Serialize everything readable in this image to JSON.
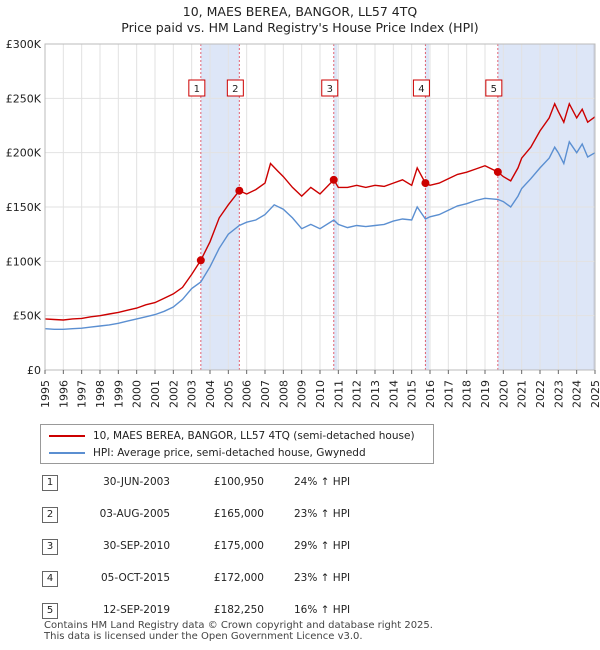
{
  "chart_data": {
    "type": "line",
    "title": "10, MAES BEREA, BANGOR, LL57 4TQ",
    "subtitle": "Price paid vs. HM Land Registry's House Price Index (HPI)",
    "xlim": [
      1995,
      2025
    ],
    "ylim": [
      0,
      300000
    ],
    "x_ticks": [
      1995,
      1996,
      1997,
      1998,
      1999,
      2000,
      2001,
      2002,
      2003,
      2004,
      2005,
      2006,
      2007,
      2008,
      2009,
      2010,
      2011,
      2012,
      2013,
      2014,
      2015,
      2016,
      2017,
      2018,
      2019,
      2020,
      2021,
      2022,
      2023,
      2024,
      2025
    ],
    "y_ticks": [
      {
        "value": 0,
        "label": "£0"
      },
      {
        "value": 50000,
        "label": "£50K"
      },
      {
        "value": 100000,
        "label": "£100K"
      },
      {
        "value": 150000,
        "label": "£150K"
      },
      {
        "value": 200000,
        "label": "£200K"
      },
      {
        "value": 250000,
        "label": "£250K"
      },
      {
        "value": 300000,
        "label": "£300K"
      }
    ],
    "grid": true,
    "legend_position": "below",
    "series": [
      {
        "name": "10, MAES BEREA, BANGOR, LL57 4TQ (semi-detached house)",
        "color": "#cc0000",
        "points": [
          [
            1995.0,
            47000
          ],
          [
            1995.5,
            46500
          ],
          [
            1996.0,
            46000
          ],
          [
            1996.5,
            47000
          ],
          [
            1997.0,
            47500
          ],
          [
            1997.5,
            49000
          ],
          [
            1998.0,
            50000
          ],
          [
            1998.5,
            51500
          ],
          [
            1999.0,
            53000
          ],
          [
            1999.5,
            55000
          ],
          [
            2000.0,
            57000
          ],
          [
            2000.5,
            60000
          ],
          [
            2001.0,
            62000
          ],
          [
            2001.5,
            66000
          ],
          [
            2002.0,
            70000
          ],
          [
            2002.5,
            76000
          ],
          [
            2003.0,
            88000
          ],
          [
            2003.5,
            100950
          ],
          [
            2004.0,
            118000
          ],
          [
            2004.5,
            140000
          ],
          [
            2005.0,
            152000
          ],
          [
            2005.6,
            165000
          ],
          [
            2006.0,
            162000
          ],
          [
            2006.5,
            166000
          ],
          [
            2007.0,
            172000
          ],
          [
            2007.3,
            190000
          ],
          [
            2007.7,
            183000
          ],
          [
            2008.0,
            178000
          ],
          [
            2008.5,
            168000
          ],
          [
            2009.0,
            160000
          ],
          [
            2009.5,
            168000
          ],
          [
            2010.0,
            162000
          ],
          [
            2010.75,
            175000
          ],
          [
            2011.0,
            168000
          ],
          [
            2011.5,
            168000
          ],
          [
            2012.0,
            170000
          ],
          [
            2012.5,
            168000
          ],
          [
            2013.0,
            170000
          ],
          [
            2013.5,
            169000
          ],
          [
            2014.0,
            172000
          ],
          [
            2014.5,
            175000
          ],
          [
            2015.0,
            170000
          ],
          [
            2015.3,
            186000
          ],
          [
            2015.75,
            172000
          ],
          [
            2016.0,
            170000
          ],
          [
            2016.5,
            172000
          ],
          [
            2017.0,
            176000
          ],
          [
            2017.5,
            180000
          ],
          [
            2018.0,
            182000
          ],
          [
            2018.5,
            185000
          ],
          [
            2019.0,
            188000
          ],
          [
            2019.7,
            182250
          ],
          [
            2020.0,
            178000
          ],
          [
            2020.4,
            174000
          ],
          [
            2020.8,
            186000
          ],
          [
            2021.0,
            195000
          ],
          [
            2021.5,
            205000
          ],
          [
            2022.0,
            220000
          ],
          [
            2022.5,
            232000
          ],
          [
            2022.8,
            245000
          ],
          [
            2023.0,
            238000
          ],
          [
            2023.3,
            228000
          ],
          [
            2023.6,
            245000
          ],
          [
            2024.0,
            232000
          ],
          [
            2024.3,
            240000
          ],
          [
            2024.6,
            228000
          ],
          [
            2025.0,
            233000
          ]
        ]
      },
      {
        "name": "HPI: Average price, semi-detached house, Gwynedd",
        "color": "#5b8fd1",
        "points": [
          [
            1995.0,
            38000
          ],
          [
            1995.5,
            37500
          ],
          [
            1996.0,
            37500
          ],
          [
            1996.5,
            38000
          ],
          [
            1997.0,
            38500
          ],
          [
            1997.5,
            39500
          ],
          [
            1998.0,
            40500
          ],
          [
            1998.5,
            41500
          ],
          [
            1999.0,
            43000
          ],
          [
            1999.5,
            45000
          ],
          [
            2000.0,
            47000
          ],
          [
            2000.5,
            49000
          ],
          [
            2001.0,
            51000
          ],
          [
            2001.5,
            54000
          ],
          [
            2002.0,
            58000
          ],
          [
            2002.5,
            65000
          ],
          [
            2003.0,
            75000
          ],
          [
            2003.5,
            81000
          ],
          [
            2004.0,
            95000
          ],
          [
            2004.5,
            112000
          ],
          [
            2005.0,
            125000
          ],
          [
            2005.6,
            133000
          ],
          [
            2006.0,
            136000
          ],
          [
            2006.5,
            138000
          ],
          [
            2007.0,
            143000
          ],
          [
            2007.5,
            152000
          ],
          [
            2008.0,
            148000
          ],
          [
            2008.5,
            140000
          ],
          [
            2009.0,
            130000
          ],
          [
            2009.5,
            134000
          ],
          [
            2010.0,
            130000
          ],
          [
            2010.75,
            138000
          ],
          [
            2011.0,
            134000
          ],
          [
            2011.5,
            131000
          ],
          [
            2012.0,
            133000
          ],
          [
            2012.5,
            132000
          ],
          [
            2013.0,
            133000
          ],
          [
            2013.5,
            134000
          ],
          [
            2014.0,
            137000
          ],
          [
            2014.5,
            139000
          ],
          [
            2015.0,
            138000
          ],
          [
            2015.3,
            150000
          ],
          [
            2015.75,
            139000
          ],
          [
            2016.0,
            141000
          ],
          [
            2016.5,
            143000
          ],
          [
            2017.0,
            147000
          ],
          [
            2017.5,
            151000
          ],
          [
            2018.0,
            153000
          ],
          [
            2018.5,
            156000
          ],
          [
            2019.0,
            158000
          ],
          [
            2019.7,
            157000
          ],
          [
            2020.0,
            155000
          ],
          [
            2020.4,
            150000
          ],
          [
            2020.8,
            160000
          ],
          [
            2021.0,
            167000
          ],
          [
            2021.5,
            176000
          ],
          [
            2022.0,
            186000
          ],
          [
            2022.5,
            195000
          ],
          [
            2022.8,
            205000
          ],
          [
            2023.0,
            200000
          ],
          [
            2023.3,
            190000
          ],
          [
            2023.6,
            210000
          ],
          [
            2024.0,
            200000
          ],
          [
            2024.3,
            208000
          ],
          [
            2024.6,
            196000
          ],
          [
            2025.0,
            200000
          ]
        ]
      }
    ],
    "sales": [
      {
        "id": "1",
        "x": 2003.5,
        "price": 100950
      },
      {
        "id": "2",
        "x": 2005.6,
        "price": 165000
      },
      {
        "id": "3",
        "x": 2010.75,
        "price": 175000
      },
      {
        "id": "4",
        "x": 2015.75,
        "price": 172000
      },
      {
        "id": "5",
        "x": 2019.7,
        "price": 182250
      }
    ],
    "shaded_spans": [
      [
        2003.5,
        2005.6
      ],
      [
        2010.75,
        2010.95
      ],
      [
        2015.75,
        2015.95
      ],
      [
        2019.7,
        2025.0
      ]
    ],
    "shade_color": "#dde6f7",
    "sale_color": "#cc0000"
  },
  "legend": {
    "items": [
      {
        "label": "10, MAES BEREA, BANGOR, LL57 4TQ (semi-detached house)",
        "color": "#cc0000"
      },
      {
        "label": "HPI: Average price, semi-detached house, Gwynedd",
        "color": "#5b8fd1"
      }
    ]
  },
  "table": {
    "rows": [
      {
        "num": "1",
        "date": "30-JUN-2003",
        "price": "£100,950",
        "hpi": "24% ↑ HPI"
      },
      {
        "num": "2",
        "date": "03-AUG-2005",
        "price": "£165,000",
        "hpi": "23% ↑ HPI"
      },
      {
        "num": "3",
        "date": "30-SEP-2010",
        "price": "£175,000",
        "hpi": "29% ↑ HPI"
      },
      {
        "num": "4",
        "date": "05-OCT-2015",
        "price": "£172,000",
        "hpi": "23% ↑ HPI"
      },
      {
        "num": "5",
        "date": "12-SEP-2019",
        "price": "£182,250",
        "hpi": "16% ↑ HPI"
      }
    ]
  },
  "footer": {
    "line1": "Contains HM Land Registry data © Crown copyright and database right 2025.",
    "line2": "This data is licensed under the Open Government Licence v3.0."
  }
}
